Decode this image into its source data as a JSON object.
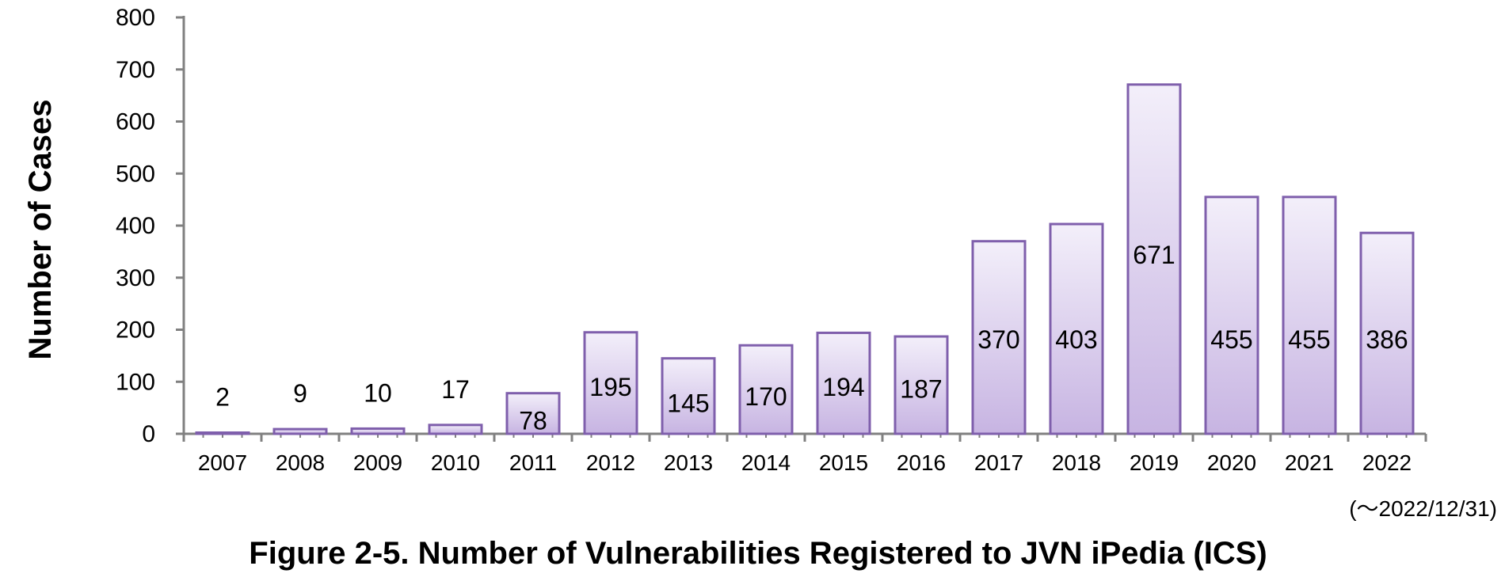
{
  "chart_data": {
    "type": "bar",
    "categories": [
      "2007",
      "2008",
      "2009",
      "2010",
      "2011",
      "2012",
      "2013",
      "2014",
      "2015",
      "2016",
      "2017",
      "2018",
      "2019",
      "2020",
      "2021",
      "2022"
    ],
    "values": [
      2,
      9,
      10,
      17,
      78,
      195,
      145,
      170,
      194,
      187,
      370,
      403,
      671,
      455,
      455,
      386
    ],
    "data_labels": [
      "2",
      "9",
      "10",
      "17",
      "78",
      "195",
      "145",
      "170",
      "194",
      "187",
      "370",
      "403",
      "671",
      "455",
      "455",
      "386"
    ],
    "ylabel": "Number of Cases",
    "xlabel": "",
    "ylim": [
      0,
      800
    ],
    "yticks": [
      0,
      100,
      200,
      300,
      400,
      500,
      600,
      700,
      800
    ],
    "ytick_labels": [
      "0",
      "100",
      "200",
      "300",
      "400",
      "500",
      "600",
      "700",
      "800"
    ],
    "grid": false,
    "legend": "none",
    "date_note": "(～2022/12/31)",
    "caption": "Figure 2-5. Number of Vulnerabilities Registered to JVN iPedia (ICS)",
    "colors": {
      "bar_top": "#f3effa",
      "bar_bottom": "#c7b4e2",
      "bar_border": "#7f5fac",
      "axis": "#808080"
    }
  }
}
